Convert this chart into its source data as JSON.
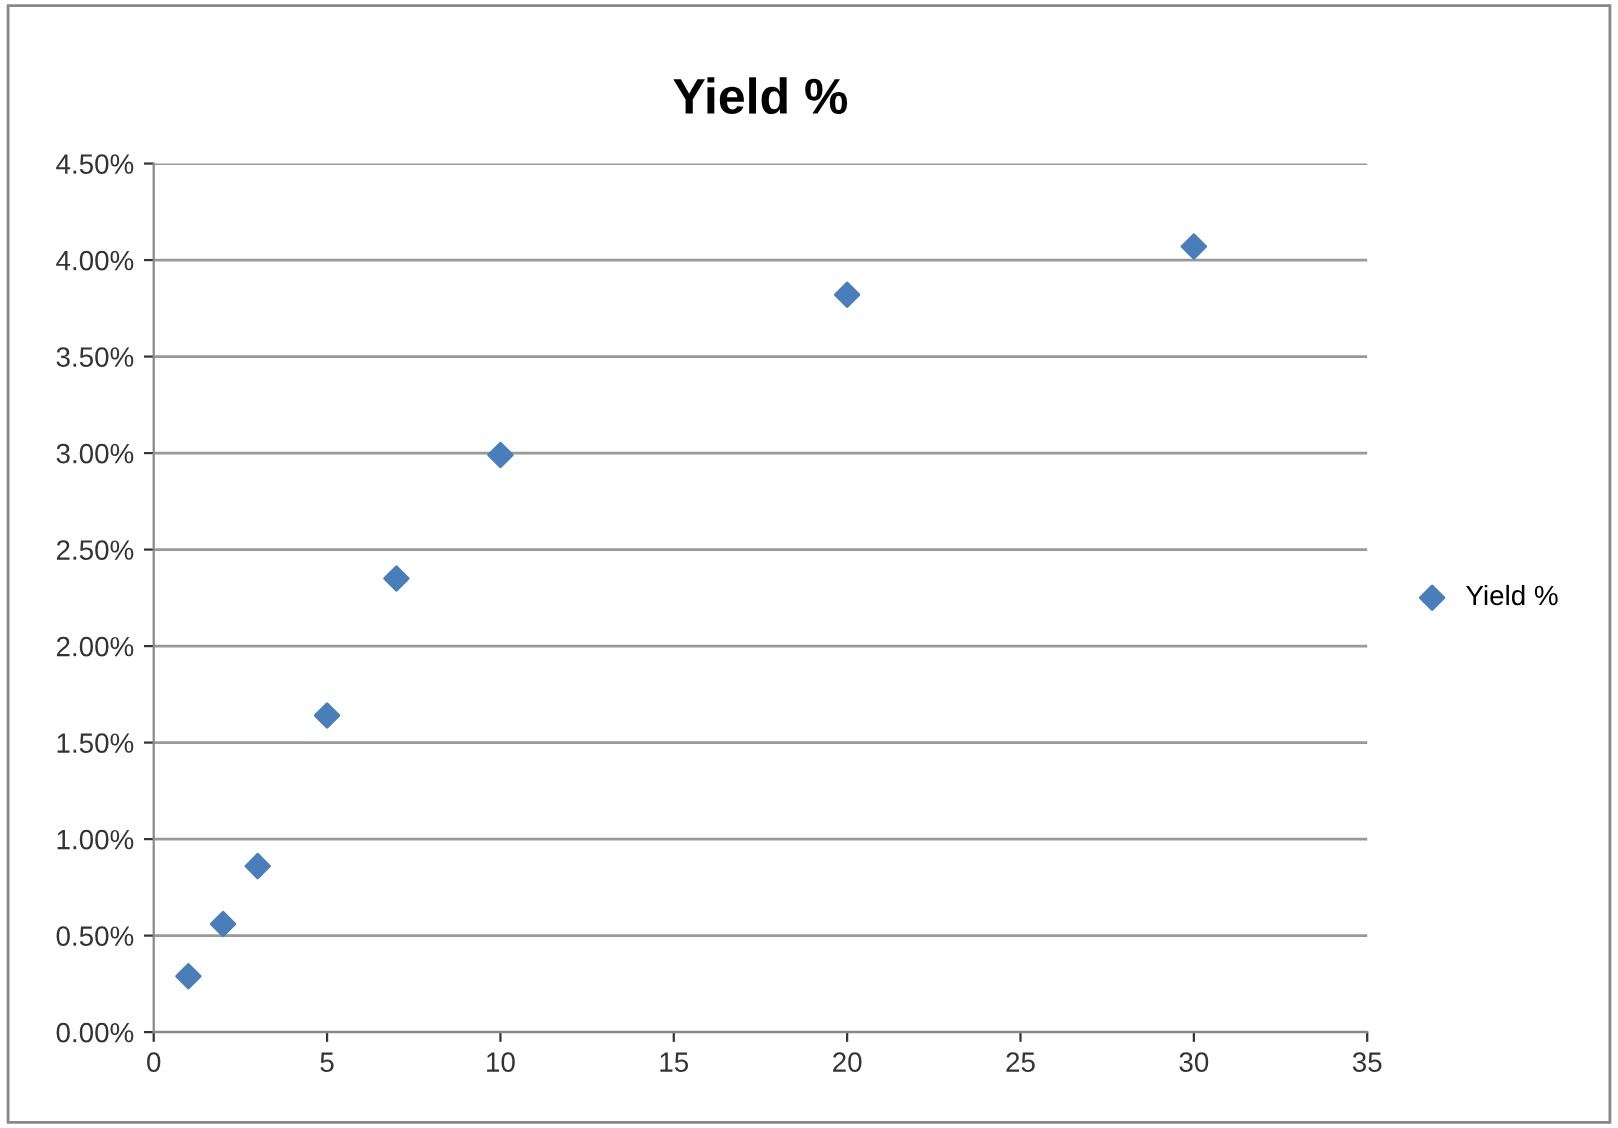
{
  "chart_data": {
    "type": "scatter",
    "title": "Yield %",
    "x": [
      1,
      2,
      3,
      5,
      7,
      10,
      20,
      30
    ],
    "series": [
      {
        "name": "Yield %",
        "color": "#4a7ebb",
        "values": [
          0.29,
          0.56,
          0.86,
          1.64,
          2.35,
          2.99,
          3.82,
          4.07
        ]
      }
    ],
    "xlim": [
      0,
      35
    ],
    "xticks": [
      0,
      5,
      10,
      15,
      20,
      25,
      30,
      35
    ],
    "ylim": [
      0,
      4.5
    ],
    "yticks": [
      {
        "value": 0,
        "label": "0.00%"
      },
      {
        "value": 0.5,
        "label": "0.50%"
      },
      {
        "value": 1,
        "label": "1.00%"
      },
      {
        "value": 1.5,
        "label": "1.50%"
      },
      {
        "value": 2,
        "label": "2.00%"
      },
      {
        "value": 2.5,
        "label": "2.50%"
      },
      {
        "value": 3,
        "label": "3.00%"
      },
      {
        "value": 3.5,
        "label": "3.50%"
      },
      {
        "value": 4,
        "label": "4.00%"
      },
      {
        "value": 4.5,
        "label": "4.50%"
      }
    ],
    "grid": "y",
    "legend": "right",
    "marker": "diamond"
  }
}
